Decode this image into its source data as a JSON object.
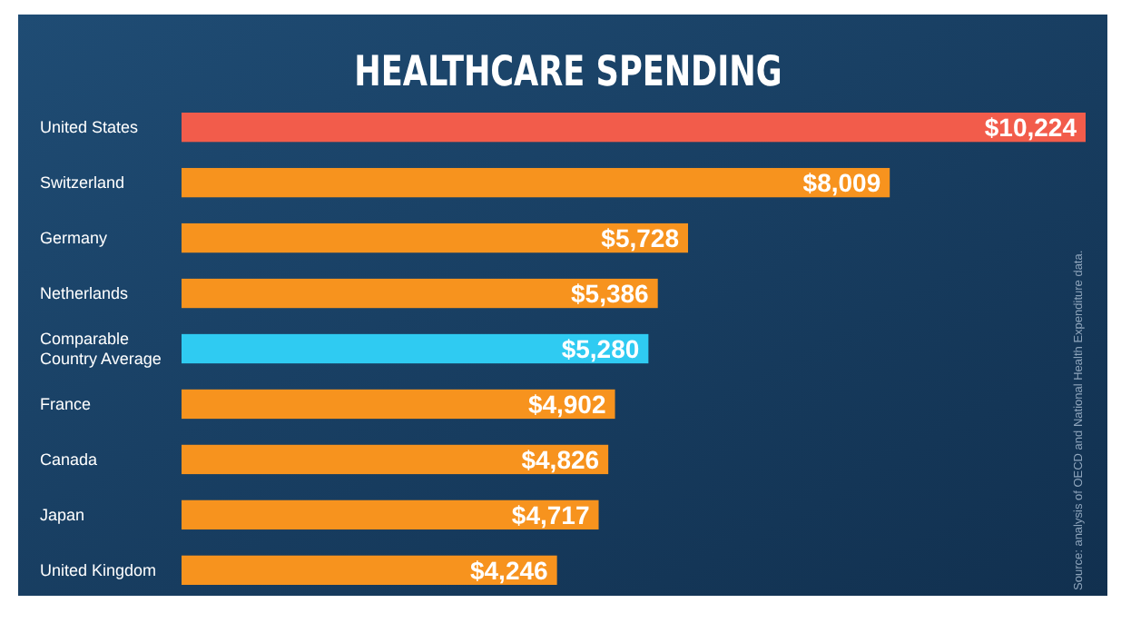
{
  "chart_data": {
    "type": "bar",
    "orientation": "horizontal",
    "title": "HEALTHCARE SPENDING",
    "categories": [
      "United States",
      "Switzerland",
      "Germany",
      "Netherlands",
      "Comparable Country Average",
      "France",
      "Canada",
      "Japan",
      "United Kingdom"
    ],
    "values": [
      10224,
      8009,
      5728,
      5386,
      5280,
      4902,
      4826,
      4717,
      4246
    ],
    "colors": [
      "#f25c4b",
      "#f7931e",
      "#f7931e",
      "#f7931e",
      "#2fcbf2",
      "#f7931e",
      "#f7931e",
      "#f7931e",
      "#f7931e"
    ],
    "value_labels": [
      "$10,224",
      "$8,009",
      "$5,728",
      "$5,386",
      "$5,280",
      "$4,902",
      "$4,826",
      "$4,717",
      "$4,246"
    ],
    "annotations": [
      "Source: analysis of OECD and National Health Expenditure data."
    ]
  }
}
